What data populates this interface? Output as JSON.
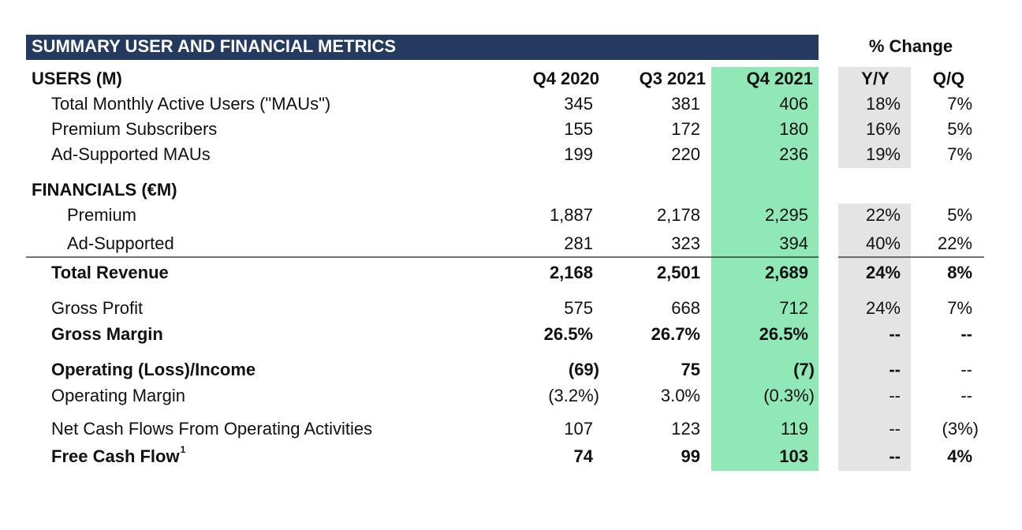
{
  "title": "SUMMARY USER AND FINANCIAL METRICS",
  "change_header": "% Change",
  "sections": [
    {
      "heading": "USERS (M)",
      "columns": [
        "Q4 2020",
        "Q3 2021",
        "Q4 2021",
        "Y/Y",
        "Q/Q"
      ]
    },
    {
      "heading": "FINANCIALS (€M)"
    }
  ],
  "rows": [
    {
      "label": "Total Monthly Active Users (\"MAUs\")",
      "cells": [
        "345",
        "381",
        "406",
        "18%",
        "7%"
      ]
    },
    {
      "label": "Premium Subscribers",
      "cells": [
        "155",
        "172",
        "180",
        "16%",
        "5%"
      ]
    },
    {
      "label": "Ad-Supported MAUs",
      "cells": [
        "199",
        "220",
        "236",
        "19%",
        "7%"
      ]
    },
    {
      "label": "Premium",
      "cells": [
        "1,887",
        "2,178",
        "2,295",
        "22%",
        "5%"
      ]
    },
    {
      "label": "Ad-Supported",
      "cells": [
        "281",
        "323",
        "394",
        "40%",
        "22%"
      ]
    },
    {
      "label": "Total Revenue",
      "cells": [
        "2,168",
        "2,501",
        "2,689",
        "24%",
        "8%"
      ]
    },
    {
      "label": "Gross Profit",
      "cells": [
        "575",
        "668",
        "712",
        "24%",
        "7%"
      ]
    },
    {
      "label": "Gross Margin",
      "cells": [
        "26.5%",
        "26.7%",
        "26.5%",
        "--",
        "--"
      ]
    },
    {
      "label": "Operating (Loss)/Income",
      "cells": [
        "(69)",
        "75",
        "(7)",
        "--",
        "--"
      ]
    },
    {
      "label": "Operating Margin",
      "cells": [
        "(3.2%)",
        "3.0%",
        "(0.3%)",
        "--",
        "--"
      ]
    },
    {
      "label": "Net Cash Flows From Operating Activities",
      "cells": [
        "107",
        "123",
        "119",
        "--",
        "(3%)"
      ]
    },
    {
      "label": "Free Cash Flow",
      "footnote_mark": "1",
      "cells": [
        "74",
        "99",
        "103",
        "--",
        "4%"
      ]
    }
  ]
}
